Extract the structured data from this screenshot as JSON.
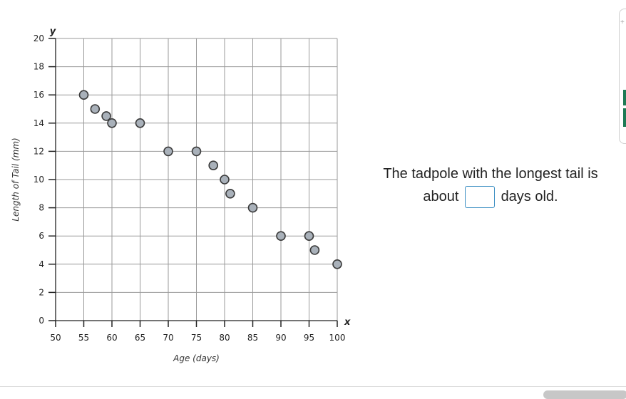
{
  "chart_data": {
    "type": "scatter",
    "xlabel": "Age (days)",
    "ylabel": "Length of Tail (mm)",
    "x_var": "x",
    "y_var": "y",
    "xlim": [
      50,
      100
    ],
    "ylim": [
      0,
      20
    ],
    "x_ticks": [
      50,
      55,
      60,
      65,
      70,
      75,
      80,
      85,
      90,
      95,
      100
    ],
    "y_ticks": [
      0,
      2,
      4,
      6,
      8,
      10,
      12,
      14,
      16,
      18,
      20
    ],
    "grid": true,
    "marker_color": "#a9b1ba",
    "marker_edge": "#3b3b3b",
    "points": [
      {
        "x": 55,
        "y": 16
      },
      {
        "x": 57,
        "y": 15
      },
      {
        "x": 59,
        "y": 14.5
      },
      {
        "x": 60,
        "y": 14
      },
      {
        "x": 65,
        "y": 14
      },
      {
        "x": 70,
        "y": 12
      },
      {
        "x": 75,
        "y": 12
      },
      {
        "x": 78,
        "y": 11
      },
      {
        "x": 80,
        "y": 10
      },
      {
        "x": 81,
        "y": 9
      },
      {
        "x": 85,
        "y": 8
      },
      {
        "x": 90,
        "y": 6
      },
      {
        "x": 95,
        "y": 6
      },
      {
        "x": 96,
        "y": 5
      },
      {
        "x": 100,
        "y": 4
      }
    ]
  },
  "question": {
    "line1": "The tadpole with the longest tail is",
    "before": "about",
    "after": "days old.",
    "answer_value": ""
  },
  "side_panel": {
    "mark": "+"
  }
}
